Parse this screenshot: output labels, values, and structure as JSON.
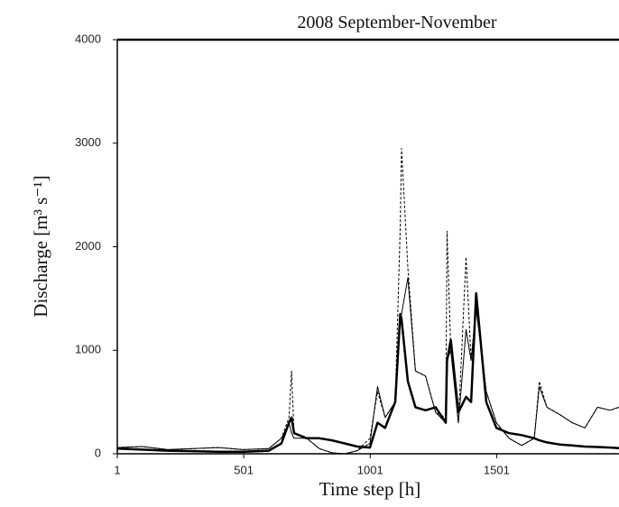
{
  "chart_data": {
    "type": "line",
    "title": "2008 September-November",
    "x_label": "Time step [h]",
    "y_label": "Discharge [m³ s⁻¹]",
    "x": [
      1,
      100,
      200,
      300,
      400,
      500,
      600,
      650,
      680,
      690,
      700,
      750,
      800,
      850,
      900,
      950,
      1000,
      1030,
      1060,
      1100,
      1120,
      1125,
      1150,
      1180,
      1220,
      1260,
      1300,
      1305,
      1320,
      1350,
      1380,
      1400,
      1420,
      1460,
      1500,
      1550,
      1600,
      1650,
      1670,
      1700,
      1750,
      1800,
      1850,
      1900,
      1950,
      1985
    ],
    "series": [
      {
        "color": "#000000",
        "dash": true,
        "width": 1,
        "values": [
          60,
          70,
          40,
          50,
          60,
          40,
          50,
          150,
          350,
          800,
          200,
          150,
          50,
          10,
          0,
          30,
          150,
          600,
          350,
          500,
          2200,
          2950,
          1800,
          800,
          750,
          400,
          350,
          2150,
          1000,
          300,
          1900,
          900,
          1450,
          600,
          300,
          150,
          80,
          150,
          700,
          450,
          380,
          300,
          250,
          450,
          420,
          450
        ]
      },
      {
        "color": "#000000",
        "dash": false,
        "width": 1,
        "values": [
          60,
          70,
          40,
          50,
          60,
          40,
          50,
          150,
          300,
          200,
          150,
          150,
          50,
          10,
          0,
          30,
          100,
          650,
          350,
          500,
          1300,
          1350,
          1700,
          800,
          750,
          400,
          300,
          900,
          1000,
          300,
          1200,
          900,
          1400,
          600,
          300,
          150,
          80,
          150,
          650,
          450,
          380,
          300,
          250,
          450,
          420,
          450
        ]
      },
      {
        "color": "#000000",
        "dash": false,
        "width": 2.5,
        "values": [
          50,
          40,
          30,
          25,
          20,
          20,
          30,
          100,
          300,
          350,
          200,
          150,
          150,
          130,
          100,
          70,
          60,
          300,
          250,
          500,
          1350,
          1300,
          700,
          450,
          420,
          450,
          300,
          900,
          1100,
          400,
          550,
          500,
          1550,
          500,
          250,
          200,
          180,
          150,
          130,
          110,
          90,
          80,
          70,
          65,
          60,
          55
        ]
      }
    ],
    "xlim": [
      1,
      1985
    ],
    "xticks": [
      1,
      501,
      1001,
      1501
    ],
    "ylim": [
      0,
      4000
    ],
    "yticks": [
      0,
      1000,
      2000,
      3000,
      4000
    ],
    "grid": false
  }
}
